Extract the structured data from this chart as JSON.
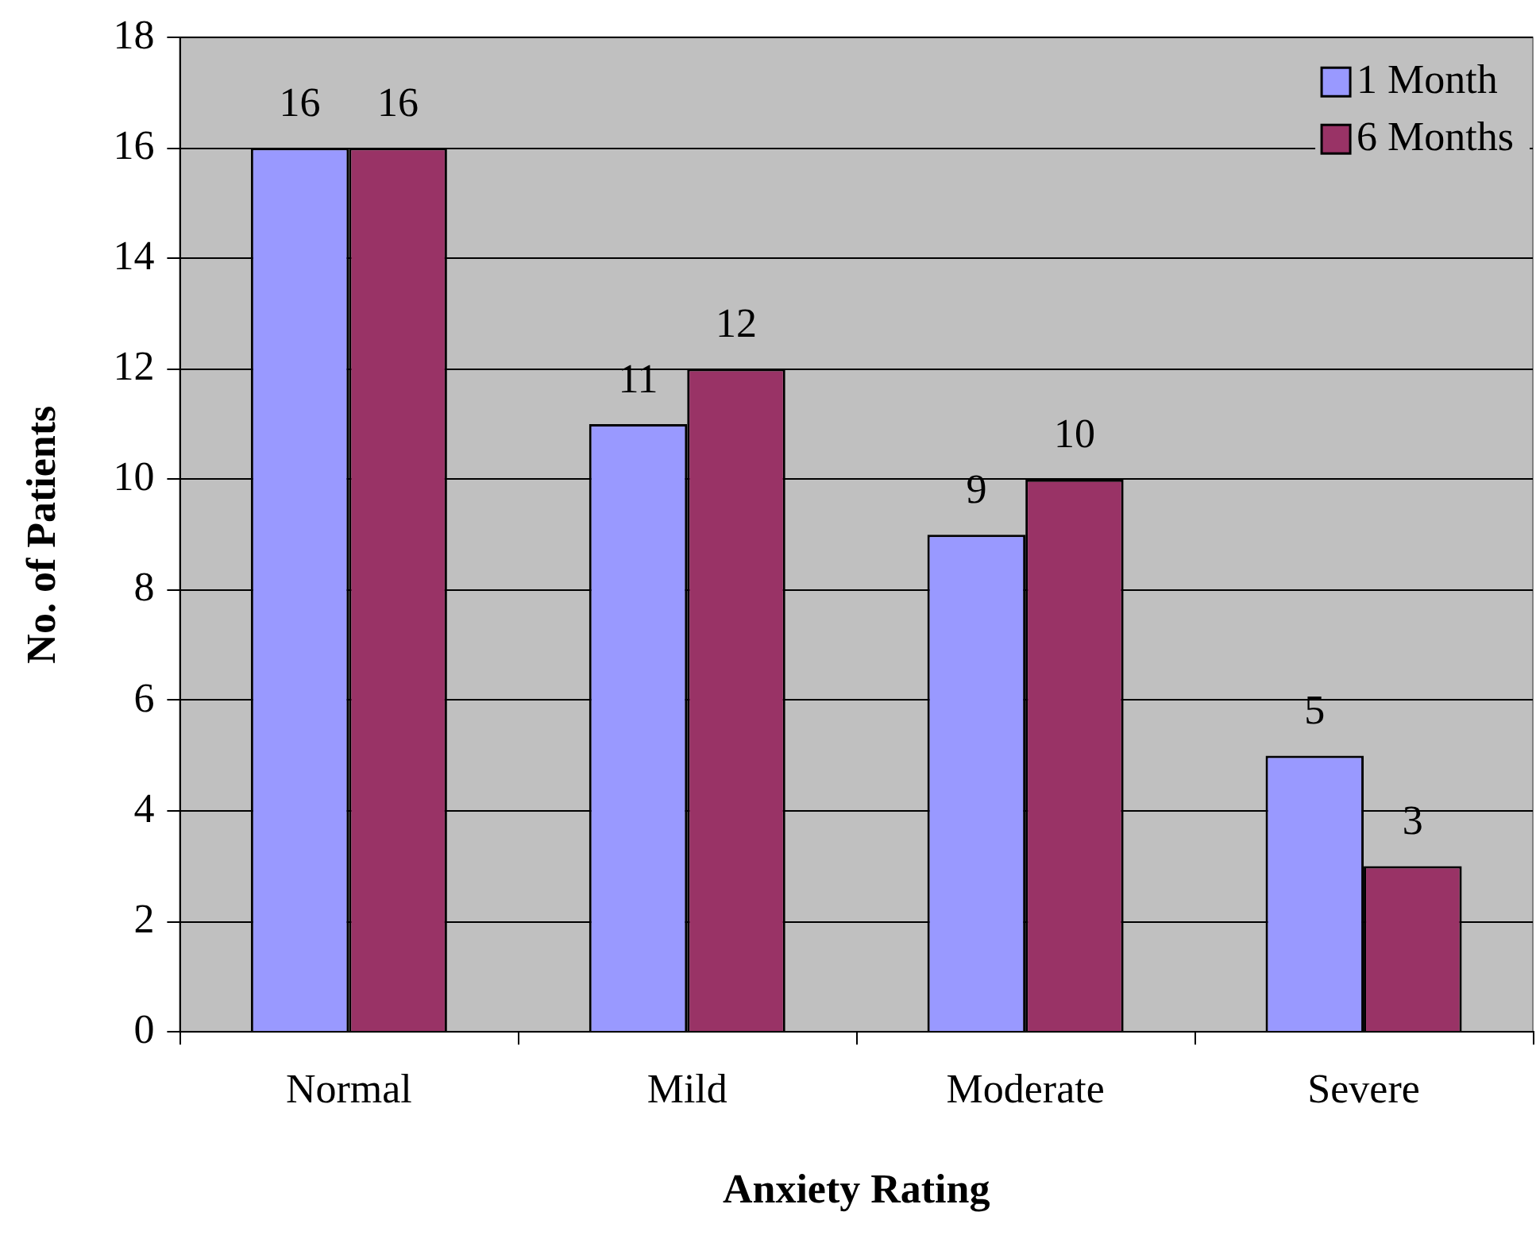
{
  "chart_data": {
    "type": "bar",
    "xlabel": "Anxiety Rating",
    "ylabel": "No. of Patients",
    "categories": [
      "Normal",
      "Mild",
      "Moderate",
      "Severe"
    ],
    "series": [
      {
        "name": "1 Month",
        "color": "#9999ff",
        "values": [
          16,
          11,
          9,
          5
        ]
      },
      {
        "name": "6 Months",
        "color": "#993366",
        "values": [
          16,
          12,
          10,
          3
        ]
      }
    ],
    "ylim": [
      0,
      18
    ],
    "yticks": [
      0,
      2,
      4,
      6,
      8,
      10,
      12,
      14,
      16,
      18
    ],
    "grid": "y",
    "legend": "top right",
    "data_labels": true
  }
}
